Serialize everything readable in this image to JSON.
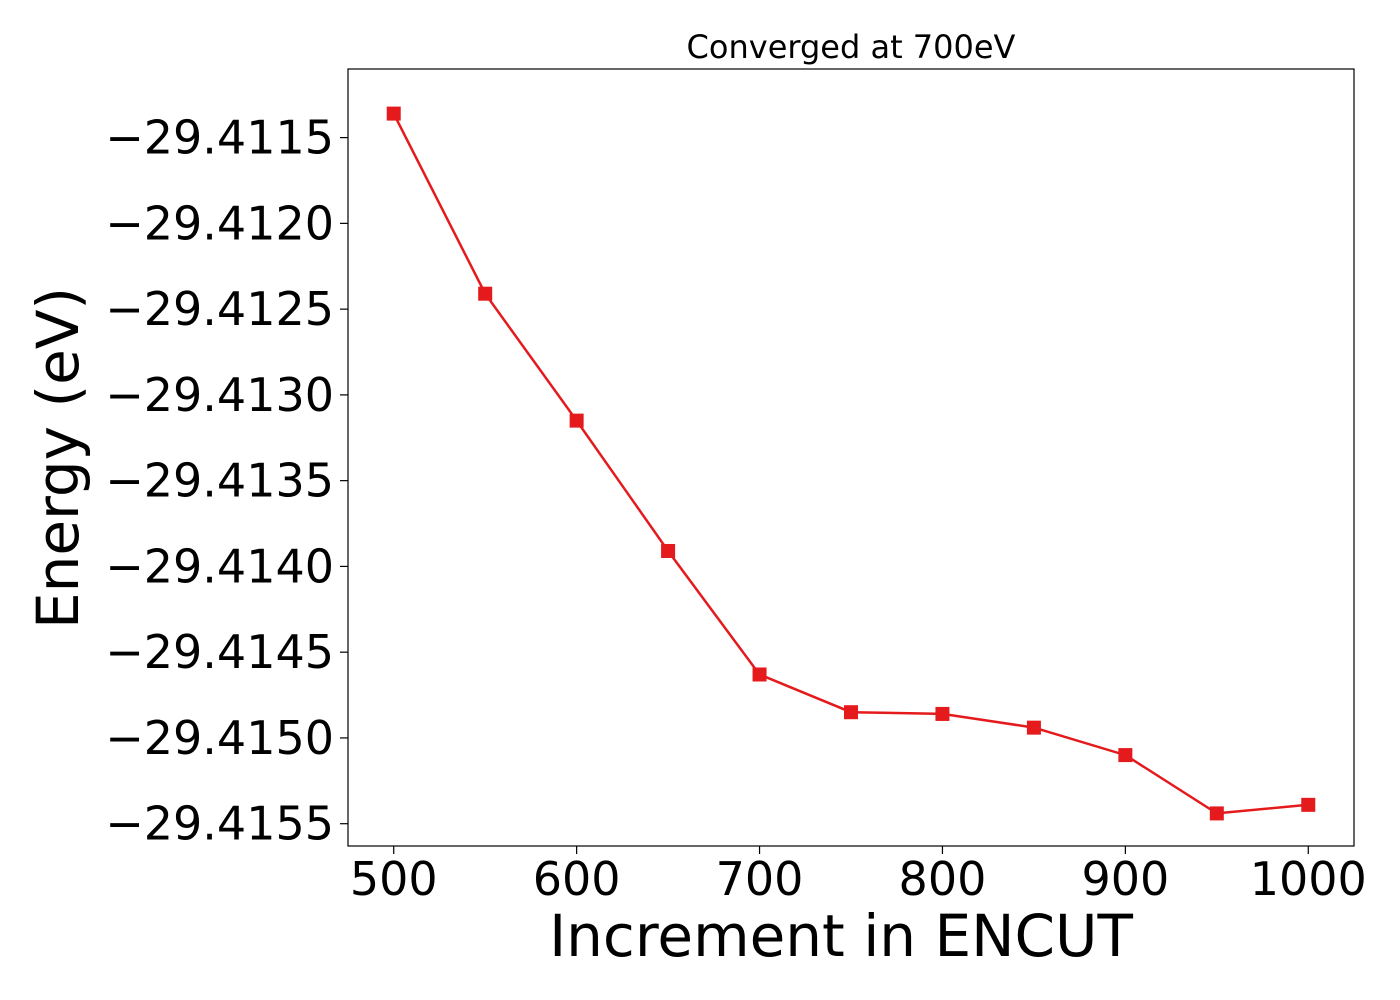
{
  "chart_data": {
    "type": "line",
    "title": "Converged at 700eV",
    "xlabel": "Increment in ENCUT",
    "ylabel": "Energy (eV)",
    "xlim": [
      475,
      1025
    ],
    "ylim": [
      -29.41563,
      -29.4111
    ],
    "xticks": [
      500,
      600,
      700,
      800,
      900,
      1000
    ],
    "xtick_labels": [
      "500",
      "600",
      "700",
      "800",
      "900",
      "1000"
    ],
    "yticks": [
      -29.4115,
      -29.412,
      -29.4125,
      -29.413,
      -29.4135,
      -29.414,
      -29.4145,
      -29.415,
      -29.4155
    ],
    "ytick_labels": [
      "−29.4115",
      "−29.4120",
      "−29.4125",
      "−29.4130",
      "−29.4135",
      "−29.4140",
      "−29.4145",
      "−29.4150",
      "−29.4155"
    ],
    "grid": false,
    "legend": "none",
    "series": [
      {
        "color": "#e41a1c",
        "marker": "square",
        "x": [
          500,
          550,
          600,
          650,
          700,
          750,
          800,
          850,
          900,
          950,
          1000
        ],
        "y": [
          -29.41136,
          -29.41241,
          -29.41315,
          -29.41391,
          -29.41463,
          -29.41485,
          -29.41486,
          -29.41494,
          -29.4151,
          -29.41544,
          -29.41539
        ]
      }
    ]
  }
}
